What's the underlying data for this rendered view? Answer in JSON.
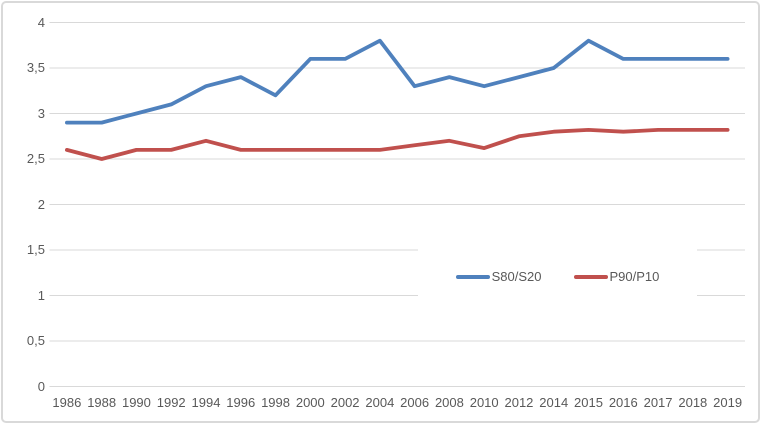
{
  "chart_data": {
    "type": "line",
    "title": "",
    "xlabel": "",
    "ylabel": "",
    "categories": [
      "1986",
      "1988",
      "1990",
      "1992",
      "1994",
      "1996",
      "1998",
      "2000",
      "2002",
      "2004",
      "2006",
      "2008",
      "2010",
      "2012",
      "2014",
      "2015",
      "2016",
      "2017",
      "2018",
      "2019"
    ],
    "series": [
      {
        "name": "S80/S20",
        "color": "#4F81BD",
        "values": [
          2.9,
          2.9,
          3.0,
          3.1,
          3.3,
          3.4,
          3.2,
          3.6,
          3.6,
          3.8,
          3.3,
          3.4,
          3.3,
          3.4,
          3.5,
          3.8,
          3.6,
          3.6,
          3.6,
          3.6
        ]
      },
      {
        "name": "P90/P10",
        "color": "#C0504D",
        "values": [
          2.6,
          2.5,
          2.6,
          2.6,
          2.7,
          2.6,
          2.6,
          2.6,
          2.6,
          2.6,
          2.65,
          2.7,
          2.62,
          2.75,
          2.8,
          2.82,
          2.8,
          2.82,
          2.82,
          2.82
        ]
      }
    ],
    "ylim": [
      0,
      4
    ],
    "ytick_step": 0.5,
    "ytick_labels": [
      "0",
      "0,5",
      "1",
      "1,5",
      "2",
      "2,5",
      "3",
      "3,5",
      "4"
    ],
    "decimal_separator": ",",
    "grid": "horizontal-only",
    "legend_position": "inside-plot-center-right"
  },
  "styles": {
    "background": "#ffffff",
    "frame_border_color": "#d9d9d9",
    "gridline_color": "#d9d9d9",
    "axis_label_color": "#595959"
  }
}
